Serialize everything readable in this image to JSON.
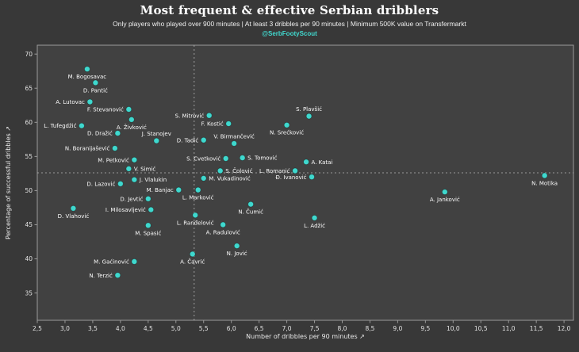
{
  "header": {
    "title": "Most frequent & effective Serbian dribblers",
    "subtitle": "Only players who played over 900 minutes | At least 3 dribbles per 90 minutes | Minimum 500K value on Transfermarkt",
    "handle": "@SerbFootyScout"
  },
  "colors": {
    "figure_bg": "#383838",
    "plot_bg": "#414141",
    "spine": "#9a9a9a",
    "tick_text": "#e3e3e3",
    "axis_text": "#e8e8e8",
    "ref_line": "#b5b5b5",
    "dot": "#3fd8ce",
    "point_label": "#fafafa",
    "accent": "#41d9cf"
  },
  "chart_data": {
    "type": "scatter",
    "title": "Most frequent & effective Serbian dribblers",
    "xlabel": "Number of dribbles per 90 minutes ↗",
    "ylabel": "Percentage of successful dribbles ↗",
    "xlim": [
      2.5,
      12.17
    ],
    "ylim": [
      31,
      71.3
    ],
    "grid": false,
    "x_ticks": {
      "values": [
        2.5,
        3,
        3.5,
        4,
        4.5,
        5,
        5.5,
        6,
        6.5,
        7,
        7.5,
        8,
        8.5,
        9,
        9.5,
        10,
        10.5,
        11,
        11.5,
        12
      ],
      "labels": [
        "2,5",
        "3,0",
        "3,5",
        "4,0",
        "4,5",
        "5,0",
        "5,5",
        "6,0",
        "6,5",
        "7,0",
        "7,5",
        "8,0",
        "8,5",
        "9,0",
        "9,5",
        "10,0",
        "10,5",
        "11,0",
        "11,5",
        "12,0"
      ]
    },
    "y_ticks": {
      "values": [
        35,
        40,
        45,
        50,
        55,
        60,
        65,
        70
      ],
      "labels": [
        "35",
        "40",
        "45",
        "50",
        "55",
        "60",
        "65",
        "70"
      ]
    },
    "reference_lines": {
      "vertical_x": 5.33,
      "horizontal_y": 52.6
    },
    "points": [
      {
        "name": "M. Bogosavac",
        "x": 3.4,
        "y": 67.8,
        "label_pos": "below"
      },
      {
        "name": "D. Pantić",
        "x": 3.55,
        "y": 65.8,
        "label_pos": "below"
      },
      {
        "name": "A. Lutovac",
        "x": 3.45,
        "y": 63.0,
        "label_pos": "left"
      },
      {
        "name": "F. Stevanović",
        "x": 4.15,
        "y": 61.9,
        "label_pos": "left"
      },
      {
        "name": "A. Živković",
        "x": 4.2,
        "y": 60.4,
        "label_pos": "below"
      },
      {
        "name": "L. Tufegdžić",
        "x": 3.3,
        "y": 59.5,
        "label_pos": "left"
      },
      {
        "name": "D. Dražić",
        "x": 3.95,
        "y": 58.4,
        "label_pos": "left"
      },
      {
        "name": "J. Stanojev",
        "x": 4.65,
        "y": 57.3,
        "label_pos": "above"
      },
      {
        "name": "D. Tadić",
        "x": 5.5,
        "y": 57.4,
        "label_pos": "left"
      },
      {
        "name": "N. Boranijašević",
        "x": 3.9,
        "y": 56.2,
        "label_pos": "left"
      },
      {
        "name": "S. Mitrović",
        "x": 5.6,
        "y": 61.0,
        "label_pos": "left"
      },
      {
        "name": "F. Kostić",
        "x": 5.95,
        "y": 59.8,
        "label_pos": "left"
      },
      {
        "name": "S. Plavšić",
        "x": 7.4,
        "y": 60.9,
        "label_pos": "above"
      },
      {
        "name": "N. Srećković",
        "x": 7.0,
        "y": 59.6,
        "label_pos": "below"
      },
      {
        "name": "V. Birmančević",
        "x": 6.05,
        "y": 56.9,
        "label_pos": "above"
      },
      {
        "name": "M. Petković",
        "x": 4.25,
        "y": 54.5,
        "label_pos": "left"
      },
      {
        "name": "S. Cvetković",
        "x": 5.9,
        "y": 54.7,
        "label_pos": "left"
      },
      {
        "name": "S. Tomović",
        "x": 6.2,
        "y": 54.8,
        "label_pos": "right"
      },
      {
        "name": "A. Katai",
        "x": 7.35,
        "y": 54.2,
        "label_pos": "right"
      },
      {
        "name": "V. Simić",
        "x": 4.15,
        "y": 53.2,
        "label_pos": "right"
      },
      {
        "name": "S. Čolović",
        "x": 5.8,
        "y": 52.9,
        "label_pos": "right"
      },
      {
        "name": "L. Romanić",
        "x": 7.15,
        "y": 52.9,
        "label_pos": "left"
      },
      {
        "name": "Đ. Ivanović",
        "x": 7.45,
        "y": 52.0,
        "label_pos": "left"
      },
      {
        "name": "N. Motika",
        "x": 11.65,
        "y": 52.2,
        "label_pos": "below"
      },
      {
        "name": "M. Vukadinović",
        "x": 5.5,
        "y": 51.8,
        "label_pos": "right"
      },
      {
        "name": "J. Vlalukin",
        "x": 4.25,
        "y": 51.6,
        "label_pos": "right"
      },
      {
        "name": "D. Lazović",
        "x": 4.0,
        "y": 51.0,
        "label_pos": "left"
      },
      {
        "name": "M. Banjac",
        "x": 5.05,
        "y": 50.1,
        "label_pos": "left"
      },
      {
        "name": "L. Marković",
        "x": 5.4,
        "y": 50.1,
        "label_pos": "below"
      },
      {
        "name": "A. Janković",
        "x": 9.85,
        "y": 49.8,
        "label_pos": "below"
      },
      {
        "name": "D. Jevtić",
        "x": 4.5,
        "y": 48.8,
        "label_pos": "left"
      },
      {
        "name": "N. Čumić",
        "x": 6.35,
        "y": 48.0,
        "label_pos": "below"
      },
      {
        "name": "D. Vlahović",
        "x": 3.15,
        "y": 47.4,
        "label_pos": "below"
      },
      {
        "name": "I. Milosavljević",
        "x": 4.55,
        "y": 47.2,
        "label_pos": "left"
      },
      {
        "name": "L. Ranđelović",
        "x": 5.35,
        "y": 46.4,
        "label_pos": "below"
      },
      {
        "name": "L. Adžić",
        "x": 7.5,
        "y": 46.0,
        "label_pos": "below"
      },
      {
        "name": "A. Radulović",
        "x": 5.85,
        "y": 45.0,
        "label_pos": "below"
      },
      {
        "name": "M. Spasić",
        "x": 4.5,
        "y": 44.9,
        "label_pos": "below"
      },
      {
        "name": "N. Jović",
        "x": 6.1,
        "y": 41.9,
        "label_pos": "below"
      },
      {
        "name": "A. Čavrić",
        "x": 5.3,
        "y": 40.7,
        "label_pos": "below"
      },
      {
        "name": "M. Gaćinović",
        "x": 4.25,
        "y": 39.6,
        "label_pos": "left"
      },
      {
        "name": "N. Terzić",
        "x": 3.95,
        "y": 37.6,
        "label_pos": "left"
      }
    ]
  }
}
